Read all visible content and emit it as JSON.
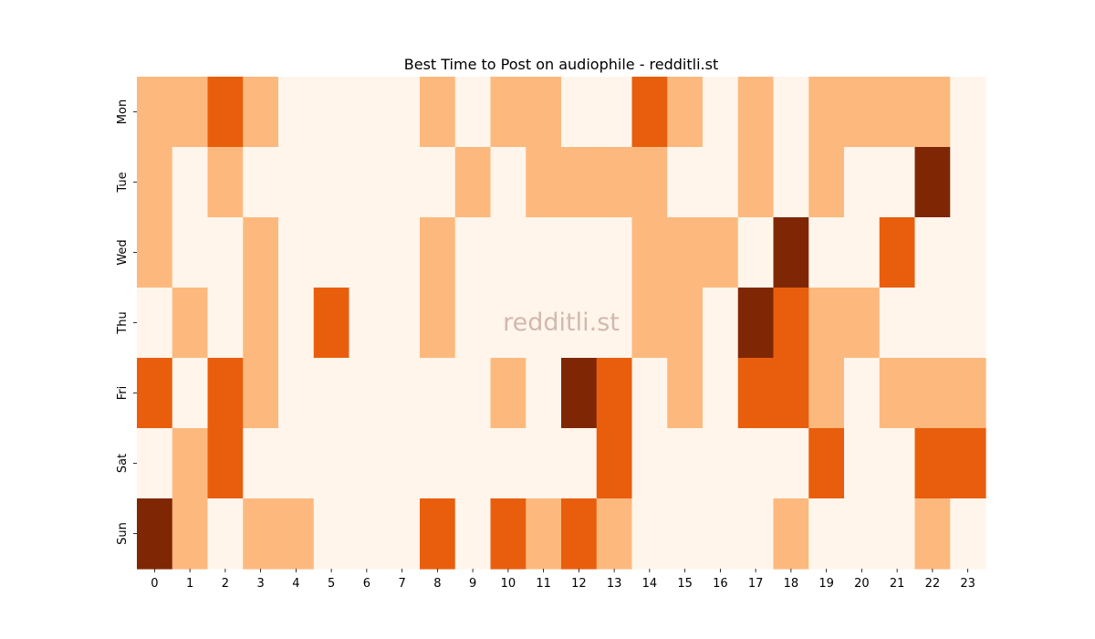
{
  "chart_data": {
    "type": "heatmap",
    "title": "Best Time to Post on audiophile - redditli.st",
    "watermark": "redditli.st",
    "xlabel": "",
    "ylabel": "",
    "x_categories": [
      "0",
      "1",
      "2",
      "3",
      "4",
      "5",
      "6",
      "7",
      "8",
      "9",
      "10",
      "11",
      "12",
      "13",
      "14",
      "15",
      "16",
      "17",
      "18",
      "19",
      "20",
      "21",
      "22",
      "23"
    ],
    "y_categories": [
      "Mon",
      "Tue",
      "Wed",
      "Thu",
      "Fri",
      "Sat",
      "Sun"
    ],
    "values": [
      [
        1,
        1,
        2,
        1,
        0,
        0,
        0,
        0,
        1,
        0,
        1,
        1,
        0,
        0,
        2,
        1,
        0,
        1,
        0,
        1,
        1,
        1,
        1,
        0
      ],
      [
        1,
        0,
        1,
        0,
        0,
        0,
        0,
        0,
        0,
        1,
        0,
        1,
        1,
        1,
        1,
        0,
        0,
        1,
        0,
        1,
        0,
        0,
        3,
        0
      ],
      [
        1,
        0,
        0,
        1,
        0,
        0,
        0,
        0,
        1,
        0,
        0,
        0,
        0,
        0,
        1,
        1,
        1,
        0,
        3,
        0,
        0,
        2,
        0,
        0
      ],
      [
        0,
        1,
        0,
        1,
        0,
        2,
        0,
        0,
        1,
        0,
        0,
        0,
        0,
        0,
        1,
        1,
        0,
        3,
        2,
        1,
        1,
        0,
        0,
        0
      ],
      [
        2,
        0,
        2,
        1,
        0,
        0,
        0,
        0,
        0,
        0,
        1,
        0,
        3,
        2,
        0,
        1,
        0,
        2,
        2,
        1,
        0,
        1,
        1,
        1
      ],
      [
        0,
        1,
        2,
        0,
        0,
        0,
        0,
        0,
        0,
        0,
        0,
        0,
        0,
        2,
        0,
        0,
        0,
        0,
        0,
        2,
        0,
        0,
        2,
        2
      ],
      [
        3,
        1,
        0,
        1,
        1,
        0,
        0,
        0,
        2,
        0,
        2,
        1,
        2,
        1,
        0,
        0,
        0,
        0,
        1,
        0,
        0,
        0,
        1,
        0
      ]
    ],
    "colorscale": [
      "#fff5eb",
      "#fdb97d",
      "#e95e0d",
      "#7f2704"
    ],
    "legend": "none",
    "grid": false
  }
}
